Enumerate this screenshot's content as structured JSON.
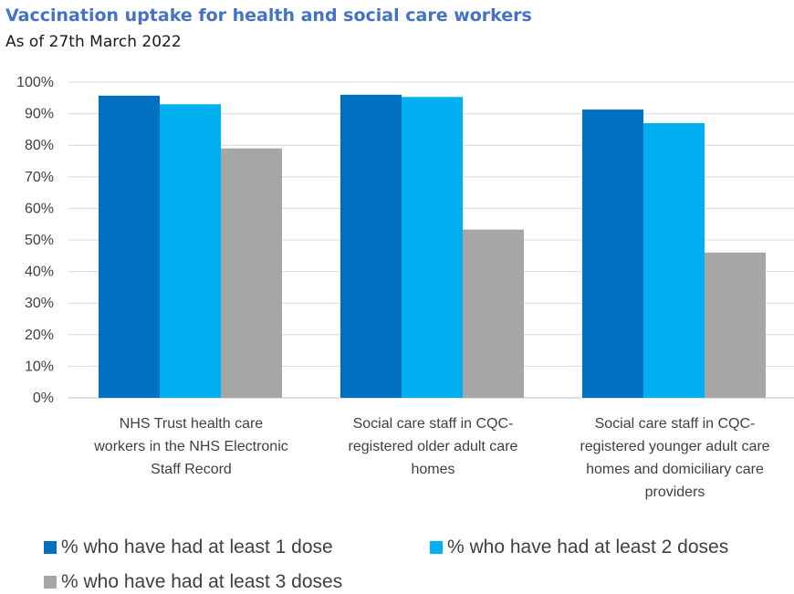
{
  "chart_data": {
    "type": "bar",
    "title": "Vaccination uptake for health and social care workers",
    "subtitle": "As of 27th March 2022",
    "categories": [
      [
        "NHS Trust health care",
        "workers in the NHS Electronic",
        "Staff Record"
      ],
      [
        "Social care staff in CQC-",
        "registered older adult care",
        "homes"
      ],
      [
        "Social care staff in CQC-",
        "registered younger adult care",
        "homes and domiciliary care",
        "providers"
      ]
    ],
    "series": [
      {
        "name": "% who have had at least 1 dose",
        "color": "#0070c0",
        "values": [
          95.7,
          96.0,
          91.3
        ]
      },
      {
        "name": "% who have had at least 2 doses",
        "color": "#00b0f0",
        "values": [
          93.0,
          95.3,
          87.0
        ]
      },
      {
        "name": "% who have had at least 3 doses",
        "color": "#a6a6a6",
        "values": [
          79.0,
          53.3,
          46.0
        ]
      }
    ],
    "yticks": [
      "0%",
      "10%",
      "20%",
      "30%",
      "40%",
      "50%",
      "60%",
      "70%",
      "80%",
      "90%",
      "100%"
    ],
    "ylim": [
      0,
      100
    ],
    "xlabel": "",
    "ylabel": "",
    "grid": true,
    "legend_position": "bottom"
  }
}
